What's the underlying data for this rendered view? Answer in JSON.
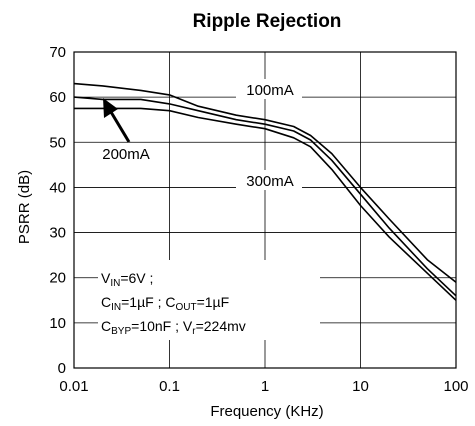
{
  "chart_data": {
    "type": "line",
    "title": "Ripple Rejection",
    "xlabel": "Frequency (KHz)",
    "ylabel": "PSRR (dB)",
    "xscale": "log",
    "xlim": [
      0.01,
      100
    ],
    "ylim": [
      0,
      70
    ],
    "xticks": [
      0.01,
      0.1,
      1,
      10,
      100
    ],
    "xtick_labels": [
      "0.01",
      "0.1",
      "1",
      "10",
      "100"
    ],
    "yticks": [
      0,
      10,
      20,
      30,
      40,
      50,
      60,
      70
    ],
    "ytick_labels": [
      "0",
      "10",
      "20",
      "30",
      "40",
      "50",
      "60",
      "70"
    ],
    "grid": true,
    "series": [
      {
        "name": "100mA",
        "x": [
          0.01,
          0.02,
          0.05,
          0.1,
          0.2,
          0.5,
          1,
          2,
          3,
          5,
          10,
          20,
          50,
          100
        ],
        "y": [
          63,
          62.5,
          61.5,
          60.5,
          58,
          56,
          55,
          53.5,
          51.5,
          47.5,
          40,
          33,
          24,
          19
        ]
      },
      {
        "name": "200mA",
        "x": [
          0.01,
          0.02,
          0.05,
          0.1,
          0.2,
          0.5,
          1,
          2,
          3,
          5,
          10,
          20,
          50,
          100
        ],
        "y": [
          60,
          59.5,
          59.5,
          58.5,
          57,
          55,
          54,
          52.5,
          50.5,
          46,
          38.5,
          31,
          22,
          16
        ]
      },
      {
        "name": "300mA",
        "x": [
          0.01,
          0.02,
          0.05,
          0.1,
          0.2,
          0.5,
          1,
          2,
          3,
          5,
          10,
          20,
          50,
          100
        ],
        "y": [
          57.5,
          57.5,
          57.5,
          57,
          55.5,
          54,
          53,
          51,
          49,
          44,
          36,
          29,
          21,
          15
        ]
      }
    ],
    "annotations": {
      "label_100": "100mA",
      "label_200": "200mA",
      "label_300": "300mA",
      "cond_line1": {
        "a": "V",
        "a_sub": "IN",
        "b": "=6V ;"
      },
      "cond_line2": {
        "a": "C",
        "a_sub": "IN",
        "b": "=1µF ; C",
        "b_sub": "OUT",
        "c": "=1µF"
      },
      "cond_line3": {
        "a": "C",
        "a_sub": "BYP",
        "b": "=10nF ; V",
        "b_sub": "r",
        "c": "=224mv"
      }
    }
  }
}
